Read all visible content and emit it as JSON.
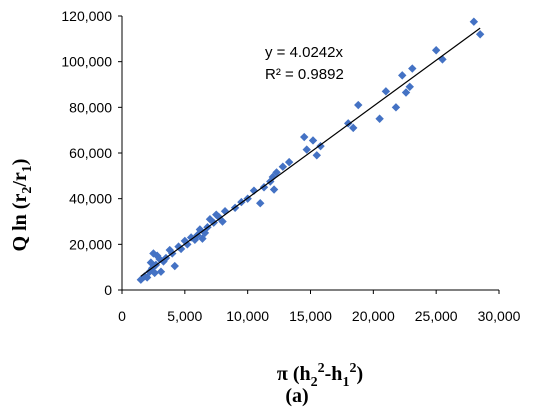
{
  "chart_data": {
    "type": "scatter",
    "xlabel": {
      "base": "π (h",
      "sub1": "2",
      "sup1": "2",
      "mid": "-h",
      "sub2": "1",
      "sup2": "2",
      "end": ")"
    },
    "ylabel": {
      "base": "Q ln (r",
      "sub1": "2",
      "mid": "/r",
      "sub2": "1",
      "end": ")"
    },
    "caption": "(a)",
    "xlim": [
      0,
      30000
    ],
    "ylim": [
      0,
      120000
    ],
    "x_ticks": [
      "0",
      "5,000",
      "10,000",
      "15,000",
      "20,000",
      "25,000",
      "30,000"
    ],
    "y_ticks": [
      "0",
      "20,000",
      "40,000",
      "60,000",
      "80,000",
      "100,000",
      "120,000"
    ],
    "trendline": {
      "slope": 4.0242,
      "x_range": [
        1500,
        28500
      ],
      "equation": "y = 4.0242x",
      "r2": "R² = 0.9892"
    },
    "marker_color": "#4472C4",
    "points": [
      [
        1500,
        4500
      ],
      [
        1800,
        6000
      ],
      [
        2000,
        5500
      ],
      [
        2200,
        8000
      ],
      [
        2300,
        12000
      ],
      [
        2400,
        9500
      ],
      [
        2500,
        16000
      ],
      [
        2600,
        7500
      ],
      [
        2700,
        11000
      ],
      [
        2800,
        15000
      ],
      [
        3000,
        13500
      ],
      [
        3100,
        8000
      ],
      [
        3300,
        12500
      ],
      [
        3500,
        14000
      ],
      [
        3800,
        17500
      ],
      [
        4000,
        16000
      ],
      [
        4200,
        10500
      ],
      [
        4500,
        19000
      ],
      [
        4700,
        18000
      ],
      [
        5000,
        21500
      ],
      [
        5200,
        20000
      ],
      [
        5500,
        23000
      ],
      [
        5800,
        22000
      ],
      [
        6000,
        24000
      ],
      [
        6200,
        26500
      ],
      [
        6400,
        22500
      ],
      [
        6600,
        25000
      ],
      [
        6800,
        27500
      ],
      [
        7000,
        31000
      ],
      [
        7300,
        29500
      ],
      [
        7500,
        33000
      ],
      [
        7700,
        32000
      ],
      [
        8000,
        30000
      ],
      [
        8200,
        34500
      ],
      [
        9000,
        36000
      ],
      [
        9500,
        38500
      ],
      [
        10000,
        40000
      ],
      [
        10500,
        43500
      ],
      [
        11000,
        38000
      ],
      [
        11300,
        45000
      ],
      [
        11800,
        47500
      ],
      [
        12000,
        49500
      ],
      [
        12100,
        44000
      ],
      [
        12300,
        51500
      ],
      [
        12800,
        54000
      ],
      [
        13300,
        56000
      ],
      [
        14500,
        67000
      ],
      [
        14700,
        61500
      ],
      [
        15200,
        65500
      ],
      [
        15500,
        59000
      ],
      [
        15800,
        63000
      ],
      [
        18000,
        73000
      ],
      [
        18400,
        71000
      ],
      [
        18800,
        81000
      ],
      [
        20500,
        75000
      ],
      [
        21000,
        87000
      ],
      [
        21800,
        80000
      ],
      [
        22300,
        94000
      ],
      [
        22600,
        86500
      ],
      [
        22900,
        89000
      ],
      [
        23100,
        97000
      ],
      [
        25000,
        105000
      ],
      [
        25500,
        101000
      ],
      [
        28000,
        117500
      ],
      [
        28500,
        112000
      ]
    ]
  }
}
